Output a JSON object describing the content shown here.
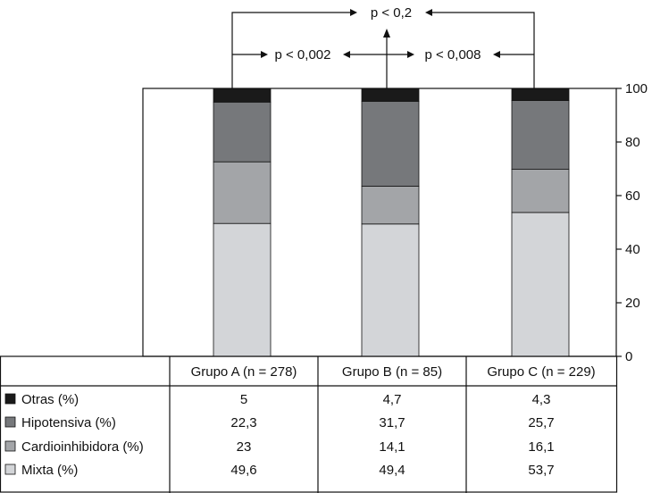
{
  "chart_data": {
    "type": "bar",
    "stacked": true,
    "categories": [
      "Grupo A (n = 278)",
      "Grupo B (n = 85)",
      "Grupo C (n = 229)"
    ],
    "series": [
      {
        "name": "Mixta (%)",
        "values": [
          49.6,
          49.4,
          53.7
        ],
        "color": "#d3d5d8",
        "labels": [
          "49,6",
          "49,4",
          "53,7"
        ]
      },
      {
        "name": "Cardioinhibidora (%)",
        "values": [
          23,
          14.1,
          16.1
        ],
        "color": "#a3a5a8",
        "labels": [
          "23",
          "14,1",
          "16,1"
        ]
      },
      {
        "name": "Hipotensiva (%)",
        "values": [
          22.3,
          31.7,
          25.7
        ],
        "color": "#76787b",
        "labels": [
          "22,3",
          "31,7",
          "25,7"
        ]
      },
      {
        "name": "Otras (%)",
        "values": [
          5,
          4.7,
          4.3
        ],
        "color": "#1a1a1a",
        "labels": [
          "5",
          "4,7",
          "4,3"
        ]
      }
    ],
    "ylim": [
      0,
      100
    ],
    "yticks": [
      "0",
      "20",
      "40",
      "60",
      "80",
      "100"
    ],
    "y_axis_side": "right",
    "legend_placement": "table-below",
    "annotations": {
      "top": "p < 0,2",
      "left": "p < 0,002",
      "right": "p < 0,008"
    }
  }
}
